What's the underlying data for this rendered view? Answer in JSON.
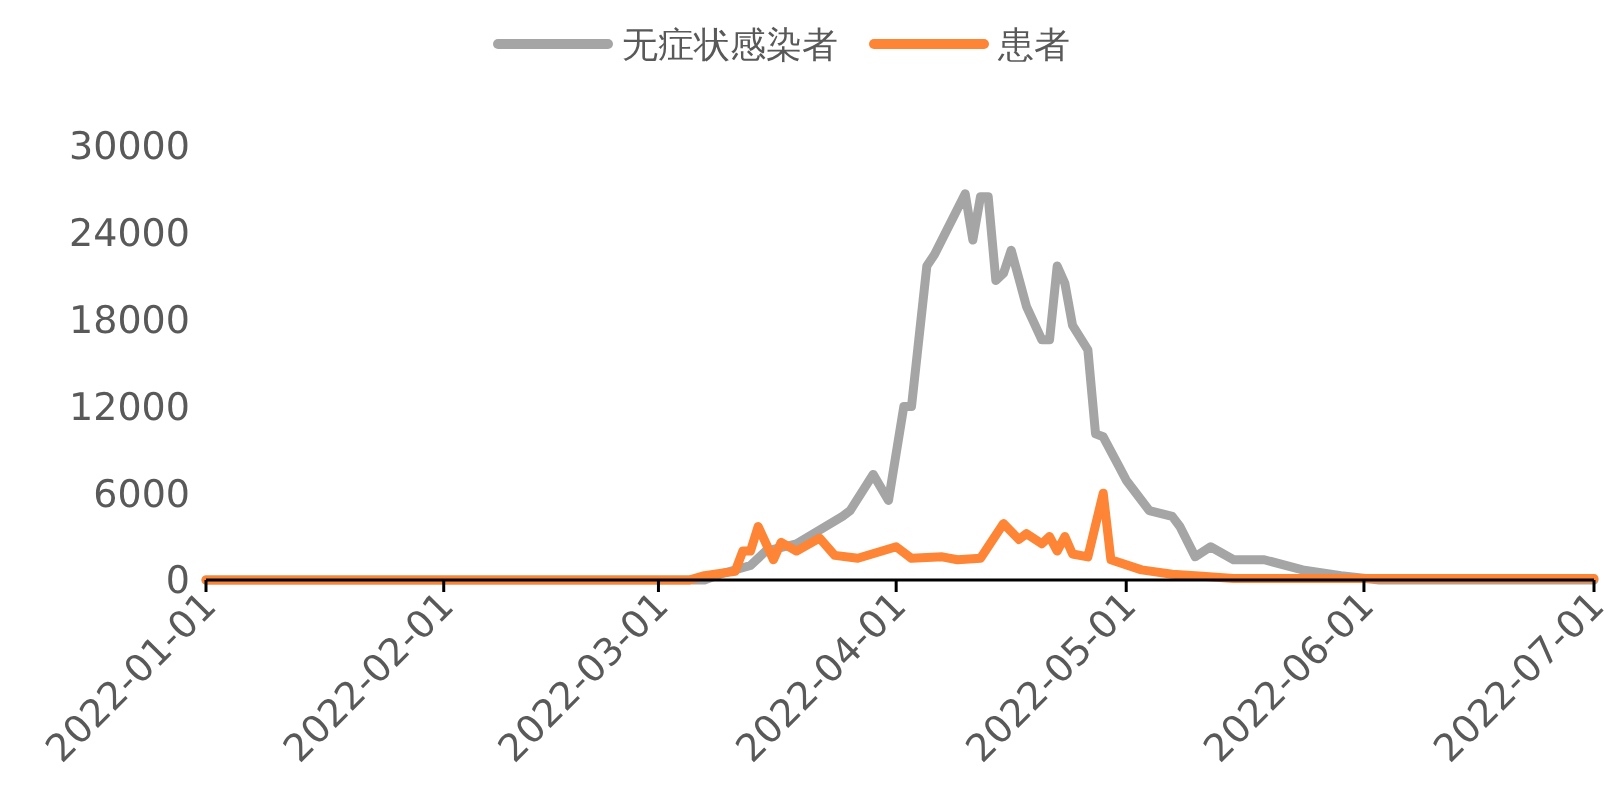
{
  "chart_data": {
    "type": "line",
    "legend": "top",
    "grid": false,
    "line_style": "solid",
    "xlim": [
      "2022-01-01",
      "2022-07-01"
    ],
    "xticks": [
      {
        "value": "2022-01-01",
        "label": "2022-01-01"
      },
      {
        "value": "2022-02-01",
        "label": "2022-02-01"
      },
      {
        "value": "2022-03-01",
        "label": "2022-03-01"
      },
      {
        "value": "2022-04-01",
        "label": "2022-04-01"
      },
      {
        "value": "2022-05-01",
        "label": "2022-05-01"
      },
      {
        "value": "2022-06-01",
        "label": "2022-06-01"
      },
      {
        "value": "2022-07-01",
        "label": "2022-07-01"
      }
    ],
    "ylim": [
      0,
      30000
    ],
    "yticks": [
      0,
      6000,
      12000,
      18000,
      24000,
      30000
    ],
    "series": [
      {
        "name": "无症状感染者",
        "color": "#a5a5a5",
        "x": [
          "2022-01-01",
          "2022-03-07",
          "2022-03-09",
          "2022-03-13",
          "2022-03-15",
          "2022-03-19",
          "2022-03-25",
          "2022-03-26",
          "2022-03-29",
          "2022-03-31",
          "2022-04-02",
          "2022-04-03",
          "2022-04-05",
          "2022-04-06",
          "2022-04-10",
          "2022-04-11",
          "2022-04-12",
          "2022-04-13",
          "2022-04-14",
          "2022-04-15",
          "2022-04-16",
          "2022-04-18",
          "2022-04-20",
          "2022-04-21",
          "2022-04-22",
          "2022-04-23",
          "2022-04-24",
          "2022-04-26",
          "2022-04-27",
          "2022-04-28",
          "2022-04-30",
          "2022-05-01",
          "2022-05-04",
          "2022-05-07",
          "2022-05-08",
          "2022-05-10",
          "2022-05-12",
          "2022-05-15",
          "2022-05-19",
          "2022-05-24",
          "2022-05-29",
          "2022-06-03",
          "2022-07-01"
        ],
        "values": [
          0,
          0,
          400,
          1000,
          2000,
          2500,
          4400,
          4800,
          7300,
          5500,
          12000,
          12000,
          21700,
          22500,
          26700,
          23500,
          26500,
          26500,
          20700,
          21200,
          22800,
          18900,
          16600,
          16600,
          21700,
          20500,
          17600,
          15900,
          10100,
          9900,
          7900,
          6900,
          4800,
          4400,
          3700,
          1600,
          2300,
          1400,
          1400,
          700,
          300,
          0,
          0
        ]
      },
      {
        "name": "患者",
        "color": "#fd8535",
        "x": [
          "2022-01-01",
          "2022-03-05",
          "2022-03-07",
          "2022-03-11",
          "2022-03-12",
          "2022-03-13",
          "2022-03-14",
          "2022-03-16",
          "2022-03-17",
          "2022-03-19",
          "2022-03-22",
          "2022-03-24",
          "2022-03-27",
          "2022-04-01",
          "2022-04-03",
          "2022-04-07",
          "2022-04-09",
          "2022-04-12",
          "2022-04-15",
          "2022-04-17",
          "2022-04-18",
          "2022-04-20",
          "2022-04-21",
          "2022-04-22",
          "2022-04-23",
          "2022-04-24",
          "2022-04-26",
          "2022-04-28",
          "2022-04-29",
          "2022-05-03",
          "2022-05-07",
          "2022-05-10",
          "2022-05-15",
          "2022-07-01"
        ],
        "values": [
          0,
          0,
          300,
          600,
          2000,
          2000,
          3700,
          1400,
          2600,
          2000,
          2900,
          1700,
          1500,
          2300,
          1500,
          1600,
          1400,
          1500,
          3900,
          2800,
          3200,
          2500,
          3000,
          2000,
          3000,
          1800,
          1600,
          6000,
          1400,
          700,
          400,
          300,
          100,
          100
        ]
      }
    ]
  }
}
